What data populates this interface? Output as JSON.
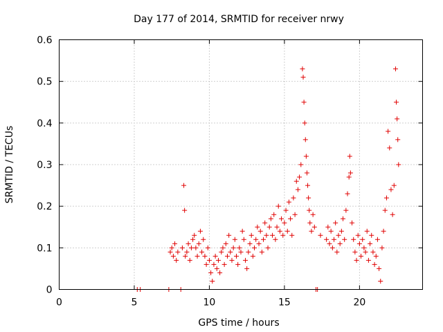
{
  "chart_data": {
    "type": "scatter",
    "title": "Day 177 of 2014, SRMTID for receiver nrwy",
    "xlabel": "GPS time / hours",
    "ylabel": "SRMTID / TECUs",
    "xlim": [
      0,
      24.2
    ],
    "ylim": [
      0,
      0.6
    ],
    "xticks": [
      0,
      5,
      10,
      15,
      20
    ],
    "yticks": [
      0,
      0.1,
      0.2,
      0.3,
      0.4,
      0.5,
      0.6
    ],
    "xtick_labels": [
      "0",
      "5",
      "10",
      "15",
      "20"
    ],
    "ytick_labels": [
      "0",
      "0.1",
      "0.2",
      "0.3",
      "0.4",
      "0.5",
      "0.6"
    ],
    "grid": true,
    "marker": "+",
    "color": "#e00000",
    "series": [
      {
        "name": "SRMTID",
        "x": [
          5.2,
          5.4,
          7.3,
          7.4,
          7.5,
          7.6,
          7.7,
          7.8,
          7.9,
          8.1,
          8.2,
          8.3,
          8.35,
          8.4,
          8.5,
          8.6,
          8.7,
          8.8,
          8.9,
          9.0,
          9.1,
          9.2,
          9.3,
          9.4,
          9.5,
          9.6,
          9.7,
          9.8,
          9.9,
          10.0,
          10.1,
          10.2,
          10.3,
          10.4,
          10.5,
          10.6,
          10.7,
          10.8,
          10.9,
          11.0,
          11.1,
          11.2,
          11.3,
          11.4,
          11.5,
          11.6,
          11.7,
          11.8,
          11.9,
          12.0,
          12.1,
          12.2,
          12.3,
          12.4,
          12.5,
          12.6,
          12.7,
          12.8,
          12.9,
          13.0,
          13.1,
          13.2,
          13.3,
          13.4,
          13.5,
          13.6,
          13.7,
          13.8,
          13.9,
          14.0,
          14.1,
          14.2,
          14.3,
          14.4,
          14.5,
          14.6,
          14.7,
          14.8,
          14.9,
          15.0,
          15.1,
          15.2,
          15.3,
          15.4,
          15.5,
          15.6,
          15.7,
          15.8,
          15.9,
          16.0,
          16.1,
          16.2,
          16.25,
          16.3,
          16.35,
          16.4,
          16.45,
          16.5,
          16.55,
          16.6,
          16.65,
          16.7,
          16.8,
          16.9,
          17.0,
          17.1,
          17.2,
          17.4,
          17.8,
          17.9,
          18.0,
          18.1,
          18.2,
          18.3,
          18.4,
          18.5,
          18.6,
          18.7,
          18.8,
          18.9,
          19.0,
          19.1,
          19.2,
          19.3,
          19.35,
          19.4,
          19.5,
          19.6,
          19.7,
          19.8,
          19.9,
          20.0,
          20.1,
          20.2,
          20.3,
          20.4,
          20.5,
          20.6,
          20.7,
          20.8,
          20.9,
          21.0,
          21.1,
          21.2,
          21.3,
          21.4,
          21.5,
          21.6,
          21.7,
          21.8,
          21.9,
          22.0,
          22.1,
          22.2,
          22.3,
          22.4,
          22.45,
          22.5,
          22.55,
          22.6
        ],
        "y": [
          0,
          0,
          0,
          0.09,
          0.1,
          0.08,
          0.11,
          0.07,
          0.09,
          0,
          0.1,
          0.25,
          0.19,
          0.08,
          0.09,
          0.11,
          0.07,
          0.1,
          0.12,
          0.13,
          0.1,
          0.08,
          0.11,
          0.14,
          0.09,
          0.12,
          0.08,
          0.06,
          0.1,
          0.07,
          0.04,
          0.02,
          0.06,
          0.08,
          0.05,
          0.07,
          0.04,
          0.09,
          0.1,
          0.06,
          0.11,
          0.08,
          0.13,
          0.09,
          0.07,
          0.1,
          0.12,
          0.08,
          0.06,
          0.1,
          0.09,
          0.14,
          0.12,
          0.07,
          0.05,
          0.09,
          0.11,
          0.13,
          0.08,
          0.1,
          0.12,
          0.15,
          0.11,
          0.14,
          0.09,
          0.12,
          0.16,
          0.13,
          0.1,
          0.15,
          0.17,
          0.13,
          0.18,
          0.12,
          0.15,
          0.2,
          0.14,
          0.17,
          0.13,
          0.16,
          0.19,
          0.14,
          0.21,
          0.17,
          0.13,
          0.22,
          0.18,
          0.26,
          0.24,
          0.27,
          0.3,
          0.53,
          0.51,
          0.45,
          0.4,
          0.36,
          0.32,
          0.28,
          0.25,
          0.22,
          0.19,
          0.16,
          0.14,
          0.18,
          0.15,
          0,
          0,
          0.13,
          0.12,
          0.15,
          0.11,
          0.14,
          0.1,
          0.12,
          0.16,
          0.09,
          0.13,
          0.11,
          0.14,
          0.17,
          0.12,
          0.19,
          0.23,
          0.27,
          0.32,
          0.28,
          0.16,
          0.12,
          0.09,
          0.07,
          0.13,
          0.11,
          0.08,
          0.12,
          0.1,
          0.09,
          0.14,
          0.07,
          0.11,
          0.13,
          0.09,
          0.06,
          0.08,
          0.12,
          0.05,
          0.02,
          0.1,
          0.14,
          0.19,
          0.22,
          0.38,
          0.34,
          0.24,
          0.18,
          0.25,
          0.53,
          0.45,
          0.41,
          0.36,
          0.3
        ]
      }
    ]
  }
}
